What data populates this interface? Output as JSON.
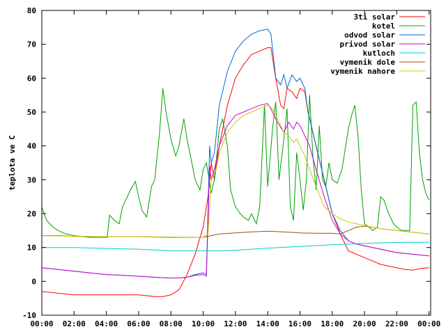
{
  "chart_data": {
    "type": "line",
    "ylabel": "teplota ve C",
    "xlabel": "",
    "xlim": [
      0,
      24.1
    ],
    "ylim": [
      -10,
      80
    ],
    "x_ticks": [
      0,
      2,
      4,
      6,
      8,
      10,
      12,
      14,
      16,
      18,
      20,
      22,
      24
    ],
    "x_tick_labels": [
      "00:00",
      "02:00",
      "04:00",
      "06:00",
      "08:00",
      "10:00",
      "12:00",
      "14:00",
      "16:00",
      "18:00",
      "20:00",
      "22:00",
      "00:00"
    ],
    "y_ticks": [
      -10,
      0,
      10,
      20,
      30,
      40,
      50,
      60,
      70,
      80
    ],
    "y_tick_labels": [
      "-10",
      "0",
      "10",
      "20",
      "30",
      "40",
      "50",
      "60",
      "70",
      "80"
    ],
    "grid": false,
    "legend_position": "top-right",
    "series": [
      {
        "name": "3ti solar",
        "color": "#ff0000",
        "x": [
          0,
          1,
          2,
          3,
          4,
          5,
          6,
          7,
          7.5,
          8,
          8.5,
          9,
          9.5,
          10,
          10.3,
          10.5,
          10.7,
          11,
          11.5,
          12,
          12.5,
          13,
          13.5,
          14,
          14.2,
          14.5,
          14.8,
          15,
          15.2,
          15.5,
          15.8,
          16,
          16.3,
          16.5,
          17,
          17.5,
          18,
          18.5,
          19,
          19.5,
          20,
          20.5,
          21,
          21.5,
          22,
          22.5,
          23,
          23.5,
          24
        ],
        "y": [
          -3,
          -3.5,
          -4,
          -4,
          -4,
          -4,
          -4,
          -4.5,
          -4.5,
          -4,
          -2.5,
          2,
          8,
          16,
          25,
          35,
          30,
          40,
          52,
          60,
          64,
          67,
          68,
          69,
          69,
          60,
          52,
          51,
          57,
          56,
          54,
          57,
          56,
          50,
          40,
          30,
          20,
          14,
          9,
          8,
          7,
          6,
          5,
          4.5,
          4,
          3.5,
          3.3,
          3.8,
          4
        ]
      },
      {
        "name": "kotel",
        "color": "#00a000",
        "x": [
          0,
          0.3,
          0.7,
          1,
          1.5,
          2,
          3,
          4,
          4.05,
          4.2,
          4.5,
          4.8,
          5,
          5.5,
          5.8,
          6,
          6.2,
          6.5,
          6.8,
          7,
          7.3,
          7.5,
          7.7,
          8,
          8.3,
          8.5,
          8.8,
          9,
          9.3,
          9.5,
          9.8,
          10,
          10.2,
          10.5,
          10.7,
          11,
          11.2,
          11.5,
          11.7,
          12,
          12.3,
          12.5,
          12.8,
          13,
          13.3,
          13.5,
          13.8,
          14,
          14.3,
          14.5,
          14.7,
          15,
          15.2,
          15.4,
          15.6,
          15.8,
          16,
          16.2,
          16.4,
          16.6,
          16.8,
          17,
          17.2,
          17.4,
          17.6,
          17.8,
          18,
          18.3,
          18.6,
          19,
          19.2,
          19.4,
          19.6,
          19.8,
          20,
          20.3,
          20.5,
          20.8,
          21,
          21.2,
          21.5,
          21.8,
          22,
          22.3,
          22.6,
          22.8,
          23,
          23.2,
          23.4,
          23.6,
          23.8,
          24
        ],
        "y": [
          22,
          18,
          16,
          15,
          14,
          13.5,
          13,
          13,
          13,
          19.5,
          18,
          17,
          22,
          27,
          29.5,
          25,
          21,
          19,
          28,
          30,
          44,
          57,
          50,
          42,
          37,
          40,
          48,
          42,
          35,
          30,
          27,
          33,
          35,
          26,
          30,
          45,
          48,
          40,
          27,
          22,
          20,
          19,
          18,
          20,
          17,
          22,
          52,
          28,
          45,
          53,
          30,
          42,
          51,
          22,
          18,
          38,
          30,
          21,
          30,
          55,
          37,
          27,
          46,
          30,
          28,
          35,
          30,
          29,
          33,
          45,
          49,
          52,
          43,
          27,
          17,
          16,
          15,
          16,
          25,
          24,
          20,
          17,
          16,
          15,
          15,
          15,
          52,
          53,
          38,
          30,
          26,
          24
        ]
      },
      {
        "name": "odvod solar",
        "color": "#0066cc",
        "x": [
          0,
          1,
          2,
          3,
          4,
          5,
          6,
          7,
          8,
          8.5,
          9,
          9.5,
          10,
          10.2,
          10.4,
          10.5,
          10.7,
          11,
          11.5,
          12,
          12.5,
          13,
          13.5,
          14,
          14.2,
          14.5,
          14.8,
          15,
          15.2,
          15.5,
          15.8,
          16,
          16.3,
          16.5,
          17,
          17.5,
          18,
          18.5,
          19,
          19.5,
          20,
          20.5,
          21,
          22,
          23,
          24
        ],
        "y": [
          4,
          3.5,
          3,
          2.5,
          2,
          1.8,
          1.5,
          1.2,
          1,
          1,
          1.2,
          2,
          2.5,
          2,
          40,
          35,
          38,
          52,
          62,
          68,
          71,
          73,
          74,
          74.5,
          73,
          60,
          58,
          61,
          57,
          61,
          59,
          60,
          57,
          50,
          40,
          30,
          20,
          15,
          12,
          11,
          10.5,
          10,
          9.5,
          8.5,
          8,
          7.5
        ]
      },
      {
        "name": "privod solar",
        "color": "#cc00cc",
        "x": [
          0,
          1,
          2,
          3,
          4,
          5,
          6,
          7,
          8,
          8.5,
          9,
          9.5,
          10,
          10.2,
          10.4,
          10.5,
          10.7,
          11,
          11.5,
          12,
          12.5,
          13,
          13.5,
          14,
          14.3,
          14.6,
          15,
          15.3,
          15.6,
          15.8,
          16,
          16.3,
          16.6,
          17,
          17.5,
          18,
          18.5,
          19,
          19.5,
          20,
          20.5,
          21,
          22,
          23,
          24
        ],
        "y": [
          4,
          3.5,
          3,
          2.5,
          2,
          1.8,
          1.5,
          1.2,
          1,
          1,
          1.2,
          1.8,
          2,
          1.5,
          34,
          30,
          33,
          40,
          46,
          49,
          50,
          51,
          52,
          52.5,
          50,
          47,
          44,
          47,
          45,
          47,
          46,
          43,
          40,
          33,
          25,
          18,
          14,
          12,
          11,
          10.5,
          10,
          9.5,
          8.5,
          8,
          7.5
        ]
      },
      {
        "name": "kutloch",
        "color": "#00cccc",
        "x": [
          0,
          2,
          4,
          6,
          8,
          10,
          11,
          12,
          14,
          16,
          18,
          20,
          22,
          24
        ],
        "y": [
          10,
          10,
          9.7,
          9.5,
          9,
          9,
          9,
          9.2,
          9.8,
          10.3,
          10.8,
          11.2,
          11.5,
          11.5
        ]
      },
      {
        "name": "vymenik dole",
        "color": "#a05000",
        "x": [
          0,
          1,
          2,
          4,
          6,
          8,
          10,
          10.5,
          11,
          12,
          13,
          14,
          15,
          16,
          17,
          18,
          18.5,
          19,
          19.5,
          20,
          20.5,
          21,
          22,
          23,
          24
        ],
        "y": [
          13.5,
          13.5,
          13.3,
          13.2,
          13.2,
          13,
          13,
          13.5,
          14,
          14.3,
          14.6,
          14.8,
          14.6,
          14.3,
          14.2,
          14.2,
          14,
          15,
          16,
          16.3,
          16,
          15.5,
          15,
          14.5,
          14
        ]
      },
      {
        "name": "vymenik nahore",
        "color": "#c8c800",
        "x": [
          0,
          2,
          4,
          6,
          8,
          10,
          10.3,
          10.5,
          10.8,
          11,
          11.5,
          12,
          12.5,
          13,
          13.5,
          14,
          14.3,
          14.6,
          15,
          15.3,
          15.6,
          15.8,
          16,
          16.3,
          16.6,
          17,
          17.5,
          18,
          18.5,
          19,
          19.5,
          20,
          20.5,
          21,
          22,
          23,
          24
        ],
        "y": [
          13.5,
          13.3,
          13.2,
          13.2,
          13.1,
          13,
          14,
          30,
          33,
          38,
          44,
          47,
          49,
          50,
          51,
          52,
          51,
          48,
          44,
          43,
          41,
          42,
          40,
          37,
          33,
          28,
          22,
          20,
          18.5,
          17.5,
          17,
          16.5,
          16,
          15.5,
          15,
          14.5,
          14
        ]
      }
    ]
  }
}
